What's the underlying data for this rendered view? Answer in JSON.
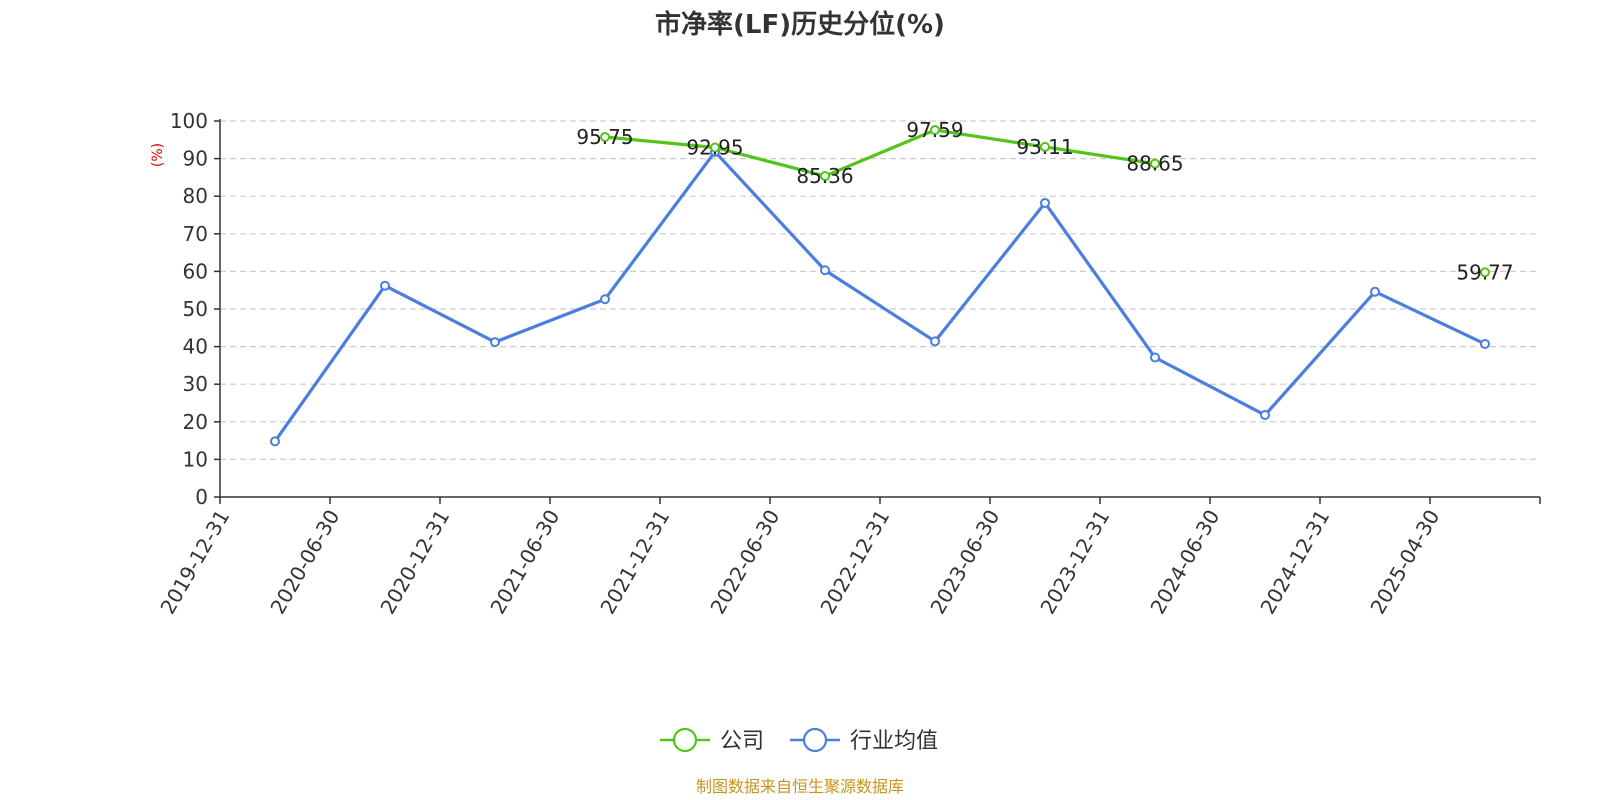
{
  "chart_data": {
    "type": "line",
    "title": "市净率(LF)历史分位(%)",
    "ylabel": "(%)",
    "ylim": [
      0,
      100
    ],
    "yticks": [
      0,
      10,
      20,
      30,
      40,
      50,
      60,
      70,
      80,
      90,
      100
    ],
    "categories": [
      "2019-12-31",
      "2020-06-30",
      "2020-12-31",
      "2021-06-30",
      "2021-12-31",
      "2022-06-30",
      "2022-12-31",
      "2023-06-30",
      "2023-12-31",
      "2024-06-30",
      "2024-12-31",
      "2025-04-30"
    ],
    "series": [
      {
        "name": "公司",
        "color": "#52c41a",
        "values": [
          null,
          null,
          null,
          95.75,
          92.95,
          85.36,
          97.59,
          93.11,
          88.65,
          null,
          null,
          59.77
        ],
        "show_labels": true
      },
      {
        "name": "行业均值",
        "color": "#4a7fdd",
        "values": [
          14.8,
          56.2,
          41.2,
          52.6,
          91.8,
          60.3,
          41.4,
          78.2,
          37.1,
          21.8,
          54.6,
          40.7
        ],
        "show_labels": false
      }
    ],
    "grid": true,
    "legend_position": "bottom-center",
    "ylabel_color": "#e60000"
  },
  "source_text": "制图数据来自恒生聚源数据库",
  "source_color": "#c8941e"
}
